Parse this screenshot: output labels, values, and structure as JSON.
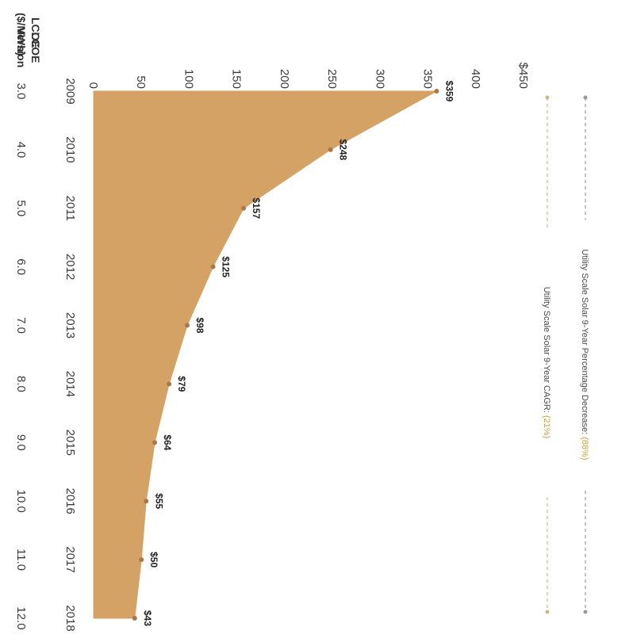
{
  "chart_data": {
    "type": "area",
    "title": "",
    "y_axis_title": "LCOE ($/MWh)",
    "x_axis_title_line1": "LCOE",
    "x_axis_title_line2": "Version",
    "y_ticks": [
      "0",
      "50",
      "100",
      "150",
      "200",
      "250",
      "300",
      "350",
      "400",
      "$450"
    ],
    "ylim": [
      0,
      450
    ],
    "categories": [
      "2009",
      "2010",
      "2011",
      "2012",
      "2013",
      "2014",
      "2015",
      "2016",
      "2017",
      "2018"
    ],
    "versions": [
      "3.0",
      "4.0",
      "5.0",
      "6.0",
      "7.0",
      "8.0",
      "9.0",
      "10.0",
      "11.0",
      "12.0"
    ],
    "values": [
      359,
      248,
      157,
      125,
      98,
      79,
      64,
      55,
      50,
      43
    ],
    "data_labels": [
      "$359",
      "$248",
      "$157",
      "$125",
      "$98",
      "$79",
      "$64",
      "$55",
      "$50",
      "$43"
    ],
    "fill_color": "#D4A265",
    "point_color": "#A9784A",
    "legend": [
      {
        "text": "Utility Scale Solar 9-Year Percentage Decrease:",
        "value": "(88%)",
        "color": "#9A9A9A"
      },
      {
        "text": "Utility Scale Solar 9-Year CAGR:",
        "value": "(21%)",
        "color": "#C9B98A"
      }
    ]
  }
}
